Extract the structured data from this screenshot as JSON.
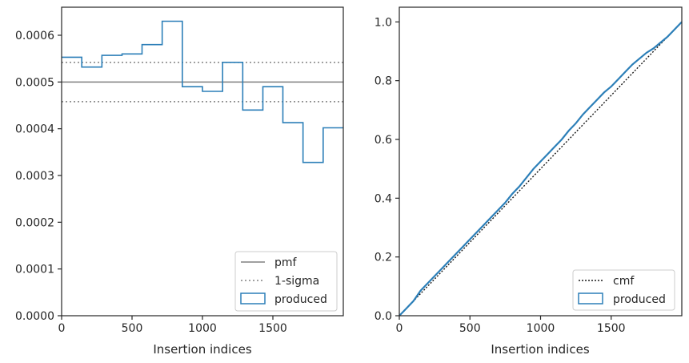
{
  "chart_data": [
    {
      "type": "histogram",
      "xlabel": "Insertion indices",
      "ylabel": "",
      "xlim": [
        0,
        2000
      ],
      "ylim": [
        0,
        0.00066
      ],
      "xticks": [
        0,
        500,
        1000,
        1500
      ],
      "yticks": [
        0.0,
        0.0001,
        0.0002,
        0.0003,
        0.0004,
        0.0005,
        0.0006
      ],
      "ytick_labels": [
        "0.0000",
        "0.0001",
        "0.0002",
        "0.0003",
        "0.0004",
        "0.0005",
        "0.0006"
      ],
      "xtick_labels": [
        "0",
        "500",
        "1000",
        "1500"
      ],
      "bin_edges": [
        0,
        143,
        286,
        429,
        571,
        714,
        857,
        1000,
        1143,
        1286,
        1429,
        1571,
        1714,
        1857,
        2000
      ],
      "values": [
        0.000553,
        0.000532,
        0.000557,
        0.00056,
        0.00058,
        0.00063,
        0.00049,
        0.00048,
        0.000542,
        0.00044,
        0.00049,
        0.000413,
        0.000328,
        0.000402
      ],
      "reference_lines": {
        "pmf": 0.0005,
        "sigma_upper": 0.000542,
        "sigma_lower": 0.000458
      },
      "legend_position": "lower right",
      "legend": [
        "pmf",
        "1-sigma",
        "produced"
      ],
      "colors": {
        "produced": "#2c7fb8",
        "pmf": "#808080",
        "sigma": "#808080"
      }
    },
    {
      "type": "line",
      "xlabel": "Insertion indices",
      "ylabel": "",
      "xlim": [
        0,
        2000
      ],
      "ylim": [
        0,
        1.05
      ],
      "xticks": [
        0,
        500,
        1000,
        1500
      ],
      "xtick_labels": [
        "0",
        "500",
        "1000",
        "1500"
      ],
      "yticks": [
        0.0,
        0.2,
        0.4,
        0.6,
        0.8,
        1.0
      ],
      "ytick_labels": [
        "0.0",
        "0.2",
        "0.4",
        "0.6",
        "0.8",
        "1.0"
      ],
      "series": [
        {
          "name": "cmf",
          "style": "dotted",
          "x": [
            0,
            2000
          ],
          "y": [
            0.0,
            1.0
          ]
        },
        {
          "name": "produced",
          "style": "solid",
          "x": [
            0,
            50,
            100,
            150,
            200,
            250,
            300,
            350,
            400,
            450,
            500,
            550,
            600,
            650,
            700,
            750,
            800,
            850,
            900,
            950,
            1000,
            1050,
            1100,
            1150,
            1200,
            1250,
            1300,
            1350,
            1400,
            1450,
            1500,
            1550,
            1600,
            1650,
            1700,
            1750,
            1800,
            1850,
            1900,
            1950,
            2000
          ],
          "y": [
            0.0,
            0.025,
            0.05,
            0.085,
            0.11,
            0.135,
            0.16,
            0.185,
            0.21,
            0.235,
            0.26,
            0.285,
            0.31,
            0.335,
            0.36,
            0.385,
            0.415,
            0.44,
            0.47,
            0.5,
            0.525,
            0.55,
            0.575,
            0.6,
            0.63,
            0.655,
            0.685,
            0.71,
            0.735,
            0.76,
            0.78,
            0.805,
            0.83,
            0.855,
            0.875,
            0.895,
            0.91,
            0.93,
            0.95,
            0.975,
            1.0
          ]
        }
      ],
      "legend_position": "lower right",
      "legend": [
        "cmf",
        "produced"
      ],
      "colors": {
        "produced": "#2c7fb8",
        "cmf": "#1a1a1a"
      }
    }
  ]
}
